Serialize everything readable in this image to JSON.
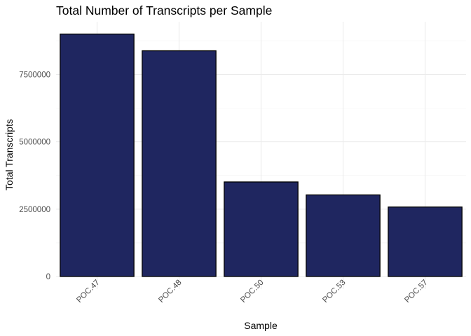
{
  "chart_data": {
    "type": "bar",
    "title": "Total Number of Transcripts per Sample",
    "xlabel": "Sample",
    "ylabel": "Total Transcripts",
    "categories": [
      "POC.47",
      "POC.48",
      "POC.50",
      "POC.53",
      "POC.57"
    ],
    "values": [
      9000000,
      8380000,
      3510000,
      3030000,
      2580000
    ],
    "ylim": [
      0,
      9450000
    ],
    "yticks": [
      0,
      2500000,
      5000000,
      7500000
    ],
    "ytick_labels": [
      "0",
      "2500000",
      "5000000",
      "7500000"
    ],
    "bar_color": "#1f2660",
    "bar_outline_color": "#000000",
    "grid": true,
    "legend": false
  }
}
